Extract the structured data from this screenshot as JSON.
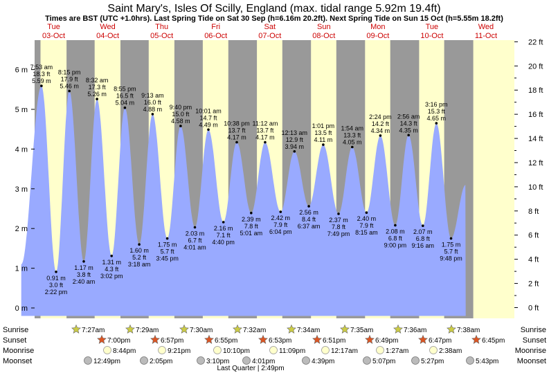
{
  "title": "Saint Mary's, Isles Of Scilly, England (max. tidal range 5.92m 19.4ft)",
  "subtitle": "Times are BST (UTC +1.0hrs). Last Spring Tide on Sat 30 Sep (h=6.16m 20.2ft). Next Spring Tide on Sun 15 Oct (h=5.55m 18.2ft)",
  "colors": {
    "night": "#999999",
    "day": "#ffffcc",
    "tide": "#99aaff",
    "day_label": "#cc0000",
    "sun_star": "#cccc44",
    "set_star": "#dd5522",
    "moon": "#ffffcc",
    "moonset": "#bbbbbb"
  },
  "chart_data": {
    "type": "area",
    "title": "Saint Mary's, Isles Of Scilly, England (max. tidal range 5.92m 19.4ft)",
    "x_range_hours": [
      0,
      208
    ],
    "ylim_m": [
      -0.3,
      6.9
    ],
    "ylim_ft": [
      -1,
      22
    ],
    "left_ticks": [
      "0 m",
      "1 m",
      "2 m",
      "3 m",
      "4 m",
      "5 m",
      "6 m"
    ],
    "right_ticks": [
      "0 ft",
      "2 ft",
      "4 ft",
      "6 ft",
      "8 ft",
      "10 ft",
      "12 ft",
      "14 ft",
      "16 ft",
      "18 ft",
      "20 ft",
      "22 ft"
    ],
    "days": [
      {
        "day": "Tue",
        "date": "03-Oct"
      },
      {
        "day": "Wed",
        "date": "04-Oct"
      },
      {
        "day": "Thu",
        "date": "05-Oct"
      },
      {
        "day": "Fri",
        "date": "06-Oct"
      },
      {
        "day": "Sat",
        "date": "07-Oct"
      },
      {
        "day": "Sun",
        "date": "08-Oct"
      },
      {
        "day": "Mon",
        "date": "09-Oct"
      },
      {
        "day": "Tue",
        "date": "10-Oct"
      },
      {
        "day": "Wed",
        "date": "11-Oct"
      }
    ],
    "tides": [
      {
        "t": "7:53 am",
        "m": "5.59 m",
        "ft": "18.3 ft",
        "x": 7.88,
        "h": 5.59,
        "type": "high"
      },
      {
        "t": "2:22 pm",
        "m": "0.91 m",
        "ft": "3.0 ft",
        "x": 14.37,
        "h": 0.91,
        "type": "low"
      },
      {
        "t": "8:15 pm",
        "m": "5.46 m",
        "ft": "17.9 ft",
        "x": 20.25,
        "h": 5.46,
        "type": "high"
      },
      {
        "t": "2:40 am",
        "m": "1.17 m",
        "ft": "3.8 ft",
        "x": 26.67,
        "h": 1.17,
        "type": "low"
      },
      {
        "t": "8:32 am",
        "m": "5.26 m",
        "ft": "17.3 ft",
        "x": 32.53,
        "h": 5.26,
        "type": "high"
      },
      {
        "t": "3:02 pm",
        "m": "1.31 m",
        "ft": "4.3 ft",
        "x": 39.03,
        "h": 1.31,
        "type": "low"
      },
      {
        "t": "8:55 pm",
        "m": "5.04 m",
        "ft": "16.5 ft",
        "x": 44.92,
        "h": 5.04,
        "type": "high"
      },
      {
        "t": "3:18 am",
        "m": "1.60 m",
        "ft": "5.2 ft",
        "x": 51.3,
        "h": 1.6,
        "type": "low"
      },
      {
        "t": "9:13 am",
        "m": "4.88 m",
        "ft": "16.0 ft",
        "x": 57.22,
        "h": 4.88,
        "type": "high"
      },
      {
        "t": "3:45 pm",
        "m": "1.75 m",
        "ft": "5.7 ft",
        "x": 63.75,
        "h": 1.75,
        "type": "low"
      },
      {
        "t": "9:40 pm",
        "m": "4.58 m",
        "ft": "15.0 ft",
        "x": 69.67,
        "h": 4.58,
        "type": "high"
      },
      {
        "t": "4:01 am",
        "m": "2.03 m",
        "ft": "6.7 ft",
        "x": 76.02,
        "h": 2.03,
        "type": "low"
      },
      {
        "t": "10:01 am",
        "m": "4.49 m",
        "ft": "14.7 ft",
        "x": 82.02,
        "h": 4.49,
        "type": "high"
      },
      {
        "t": "4:40 pm",
        "m": "2.16 m",
        "ft": "7.1 ft",
        "x": 88.67,
        "h": 2.16,
        "type": "low"
      },
      {
        "t": "10:38 pm",
        "m": "4.17 m",
        "ft": "13.7 ft",
        "x": 94.63,
        "h": 4.17,
        "type": "high"
      },
      {
        "t": "5:01 am",
        "m": "2.39 m",
        "ft": "7.8 ft",
        "x": 101.02,
        "h": 2.39,
        "type": "low"
      },
      {
        "t": "11:12 am",
        "m": "4.17 m",
        "ft": "13.7 ft",
        "x": 107.2,
        "h": 4.17,
        "type": "high"
      },
      {
        "t": "6:04 pm",
        "m": "2.42 m",
        "ft": "7.9 ft",
        "x": 114.07,
        "h": 2.42,
        "type": "low"
      },
      {
        "t": "12:13 am",
        "m": "3.94 m",
        "ft": "12.9 ft",
        "x": 120.22,
        "h": 3.94,
        "type": "high"
      },
      {
        "t": "6:37 am",
        "m": "2.56 m",
        "ft": "8.4 ft",
        "x": 126.62,
        "h": 2.56,
        "type": "low"
      },
      {
        "t": "1:01 pm",
        "m": "4.11 m",
        "ft": "13.5 ft",
        "x": 133.02,
        "h": 4.11,
        "type": "high"
      },
      {
        "t": "7:49 pm",
        "m": "2.37 m",
        "ft": "7.8 ft",
        "x": 139.82,
        "h": 2.37,
        "type": "low"
      },
      {
        "t": "1:54 am",
        "m": "4.05 m",
        "ft": "13.3 ft",
        "x": 145.9,
        "h": 4.05,
        "type": "high"
      },
      {
        "t": "8:15 am",
        "m": "2.40 m",
        "ft": "7.9 ft",
        "x": 152.25,
        "h": 2.4,
        "type": "low"
      },
      {
        "t": "2:24 pm",
        "m": "4.34 m",
        "ft": "14.2 ft",
        "x": 158.4,
        "h": 4.34,
        "type": "high"
      },
      {
        "t": "9:00 pm",
        "m": "2.08 m",
        "ft": "6.8 ft",
        "x": 165.0,
        "h": 2.08,
        "type": "low"
      },
      {
        "t": "2:56 am",
        "m": "4.35 m",
        "ft": "14.3 ft",
        "x": 170.93,
        "h": 4.35,
        "type": "high"
      },
      {
        "t": "9:16 am",
        "m": "2.07 m",
        "ft": "6.8 ft",
        "x": 177.27,
        "h": 2.07,
        "type": "low"
      },
      {
        "t": "3:16 pm",
        "m": "4.65 m",
        "ft": "15.3 ft",
        "x": 183.27,
        "h": 4.65,
        "type": "high"
      },
      {
        "t": "9:48 pm",
        "m": "1.75 m",
        "ft": "5.7 ft",
        "x": 189.8,
        "h": 1.75,
        "type": "low"
      }
    ],
    "sunrise": [
      "7:27am",
      "7:29am",
      "7:30am",
      "7:32am",
      "7:34am",
      "7:35am",
      "7:36am",
      "7:38am"
    ],
    "sunset": [
      "7:00pm",
      "6:57pm",
      "6:55pm",
      "6:53pm",
      "6:51pm",
      "6:49pm",
      "6:47pm",
      "6:45pm"
    ],
    "moonrise": [
      "8:44pm",
      "9:21pm",
      "10:10pm",
      "11:09pm",
      "12:17am",
      "1:27am",
      "2:38am"
    ],
    "moonset": [
      "12:49pm",
      "2:05pm",
      "3:10pm",
      "4:01pm",
      "4:39pm",
      "5:07pm",
      "5:27pm",
      "5:43pm"
    ],
    "moon_phase": "Last Quarter | 2:49pm",
    "row_labels": {
      "sunrise": "Sunrise",
      "sunset": "Sunset",
      "moonrise": "Moonrise",
      "moonset": "Moonset"
    }
  }
}
